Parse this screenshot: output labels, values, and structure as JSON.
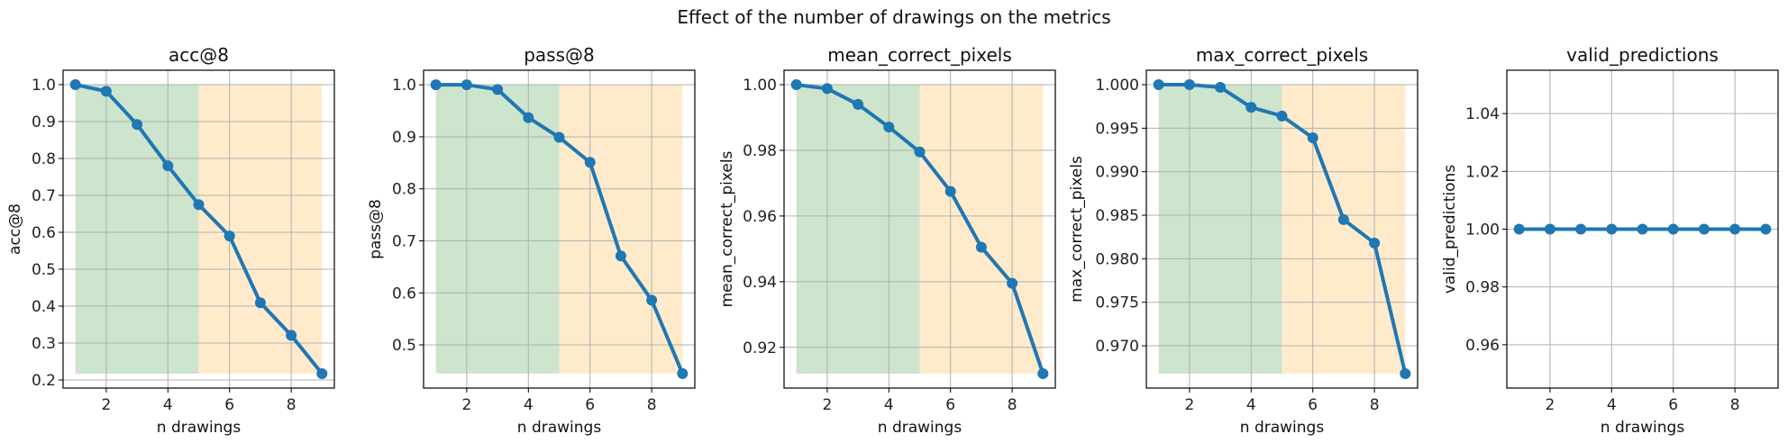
{
  "figure": {
    "suptitle": "Effect of the number of drawings on the metrics"
  },
  "colors": {
    "line": "#1f77b4",
    "green_band": "#cde4cd",
    "orange_band": "#ffebcb",
    "grid": "#b0b0b0"
  },
  "chart_data": [
    {
      "type": "line",
      "title": "acc@8",
      "xlabel": "n drawings",
      "ylabel": "acc@8",
      "x": [
        1,
        2,
        3,
        4,
        5,
        6,
        7,
        8,
        9
      ],
      "y": [
        1.0,
        0.982,
        0.892,
        0.78,
        0.675,
        0.59,
        0.409,
        0.321,
        0.217
      ],
      "xlim": [
        0.6,
        9.4
      ],
      "ylim": [
        0.178,
        1.039
      ],
      "xticks": [
        2,
        4,
        6,
        8
      ],
      "yticks": [
        "0.2",
        "0.3",
        "0.4",
        "0.5",
        "0.6",
        "0.7",
        "0.8",
        "0.9",
        "1.0"
      ],
      "bands": [
        {
          "from": 1,
          "to": 5,
          "color": "green"
        },
        {
          "from": 5,
          "to": 9,
          "color": "orange"
        }
      ],
      "grid": true
    },
    {
      "type": "line",
      "title": "pass@8",
      "xlabel": "n drawings",
      "ylabel": "pass@8",
      "x": [
        1,
        2,
        3,
        4,
        5,
        6,
        7,
        8,
        9
      ],
      "y": [
        1.0,
        1.0,
        0.991,
        0.937,
        0.899,
        0.851,
        0.671,
        0.586,
        0.445
      ],
      "xlim": [
        0.6,
        9.4
      ],
      "ylim": [
        0.417,
        1.028
      ],
      "xticks": [
        2,
        4,
        6,
        8
      ],
      "yticks": [
        "0.5",
        "0.6",
        "0.7",
        "0.8",
        "0.9",
        "1.0"
      ],
      "bands": [
        {
          "from": 1,
          "to": 5,
          "color": "green"
        },
        {
          "from": 5,
          "to": 9,
          "color": "orange"
        }
      ],
      "grid": true
    },
    {
      "type": "line",
      "title": "mean_correct_pixels",
      "xlabel": "n drawings",
      "ylabel": "mean_correct_pixels",
      "x": [
        1,
        2,
        3,
        4,
        5,
        6,
        7,
        8,
        9
      ],
      "y": [
        1.0,
        0.9988,
        0.994,
        0.9871,
        0.9795,
        0.9675,
        0.9505,
        0.9395,
        0.912
      ],
      "xlim": [
        0.6,
        9.4
      ],
      "ylim": [
        0.9076,
        1.0044
      ],
      "xticks": [
        2,
        4,
        6,
        8
      ],
      "yticks": [
        "0.92",
        "0.94",
        "0.96",
        "0.98",
        "1.00"
      ],
      "bands": [
        {
          "from": 1,
          "to": 5,
          "color": "green"
        },
        {
          "from": 5,
          "to": 9,
          "color": "orange"
        }
      ],
      "grid": true
    },
    {
      "type": "line",
      "title": "max_correct_pixels",
      "xlabel": "n drawings",
      "ylabel": "max_correct_pixels",
      "x": [
        1,
        2,
        3,
        4,
        5,
        6,
        7,
        8,
        9
      ],
      "y": [
        1.0,
        1.0,
        0.9997,
        0.9974,
        0.9964,
        0.9939,
        0.9845,
        0.9818,
        0.9668
      ],
      "xlim": [
        0.6,
        9.4
      ],
      "ylim": [
        0.96514,
        1.00166
      ],
      "xticks": [
        2,
        4,
        6,
        8
      ],
      "yticks": [
        "0.970",
        "0.975",
        "0.980",
        "0.985",
        "0.990",
        "0.995",
        "1.000"
      ],
      "bands": [
        {
          "from": 1,
          "to": 5,
          "color": "green"
        },
        {
          "from": 5,
          "to": 9,
          "color": "orange"
        }
      ],
      "grid": true
    },
    {
      "type": "line",
      "title": "valid_predictions",
      "xlabel": "n drawings",
      "ylabel": "valid_predictions",
      "x": [
        1,
        2,
        3,
        4,
        5,
        6,
        7,
        8,
        9
      ],
      "y": [
        1.0,
        1.0,
        1.0,
        1.0,
        1.0,
        1.0,
        1.0,
        1.0,
        1.0
      ],
      "xlim": [
        0.6,
        9.4
      ],
      "ylim": [
        0.945,
        1.055
      ],
      "xticks": [
        2,
        4,
        6,
        8
      ],
      "yticks": [
        "0.96",
        "0.98",
        "1.00",
        "1.02",
        "1.04"
      ],
      "bands": [],
      "grid": true
    }
  ]
}
